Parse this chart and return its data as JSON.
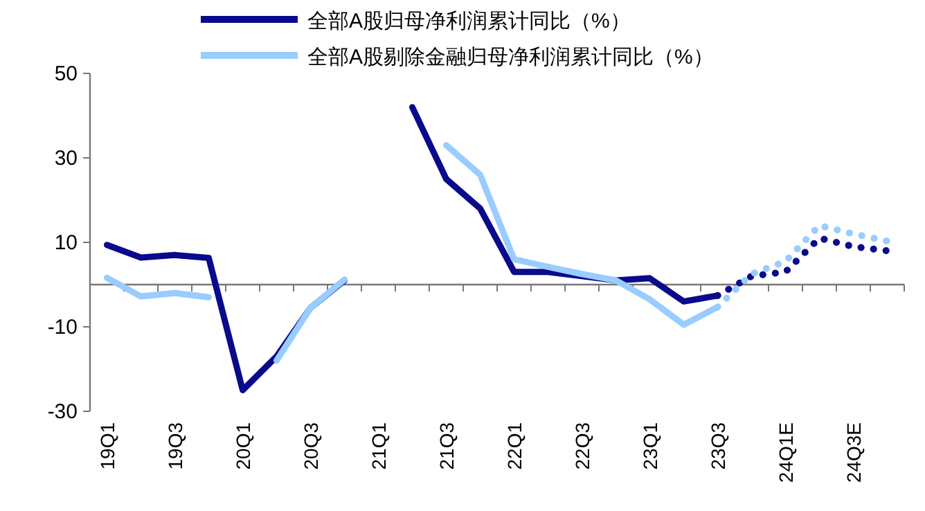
{
  "chart_data": {
    "type": "line",
    "ylim": [
      -30,
      50
    ],
    "yticks": [
      -30,
      -10,
      10,
      30,
      50
    ],
    "categories": [
      "19Q1",
      null,
      "19Q3",
      null,
      "20Q1",
      null,
      "20Q3",
      null,
      "21Q1",
      null,
      "21Q3",
      null,
      "22Q1",
      null,
      "22Q3",
      null,
      "23Q1",
      null,
      "23Q3",
      null,
      "24Q1E",
      null,
      "24Q3E",
      null
    ],
    "grid": false,
    "legend": "top",
    "marker": "none",
    "series": [
      {
        "name": "全部A股归母净利润累计同比（%）",
        "color": "#0a0a8c",
        "line_style": "solid",
        "values": [
          9.4,
          6.4,
          7,
          6.3,
          -25,
          -17,
          -5.5,
          1,
          null,
          42,
          25,
          18,
          3,
          3,
          2,
          1,
          1.5,
          -4,
          -2.6,
          null,
          null,
          null,
          null,
          null
        ]
      },
      {
        "name": "全部A股剔除金融归母净利润累计同比（%）",
        "color": "#99ccff",
        "line_style": "solid",
        "values": [
          1.6,
          -2.8,
          -2,
          -3,
          null,
          -18,
          -5.5,
          1.2,
          null,
          null,
          33,
          26,
          6,
          4.2,
          2.5,
          1,
          -3.5,
          -9.5,
          -5.3,
          null,
          null,
          null,
          null,
          null
        ]
      },
      {
        "color": "#0a0a8c",
        "line_style": "dotted",
        "values": [
          null,
          null,
          null,
          null,
          null,
          null,
          null,
          null,
          null,
          null,
          null,
          null,
          null,
          null,
          null,
          null,
          null,
          null,
          -2.6,
          2,
          3,
          11,
          9,
          8
        ]
      },
      {
        "color": "#99ccff",
        "line_style": "dotted",
        "values": [
          null,
          null,
          null,
          null,
          null,
          null,
          null,
          null,
          null,
          null,
          null,
          null,
          null,
          null,
          null,
          null,
          null,
          null,
          -5.3,
          2.5,
          5.5,
          14,
          12,
          10.3
        ]
      }
    ]
  }
}
